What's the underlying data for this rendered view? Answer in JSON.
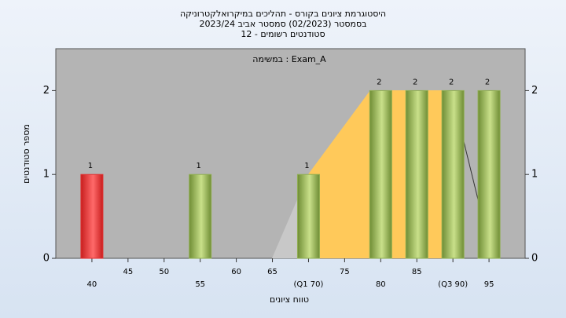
{
  "chart_data": {
    "type": "bar",
    "title": [
      "היסטוגרמת ציונים בקורס - תהליכים במיקרואלקטרוניקה",
      "בסמסטר  (02/2023)  סמסטר אביב 2023/24",
      "סטודנטים רשומים - 12"
    ],
    "subtitle": "במשימה : Exam_A",
    "x_label": "טווח ציונים",
    "y_label": "מספר סטודנטים",
    "x": [
      40,
      55,
      70,
      80,
      85,
      90,
      95
    ],
    "values": [
      1,
      1,
      1,
      2,
      2,
      2,
      2
    ],
    "colors": [
      "#e03030",
      "#8fae50",
      "#8fae50",
      "#8fae50",
      "#8fae50",
      "#8fae50",
      "#8fae50"
    ],
    "xlim": [
      35,
      100
    ],
    "xticks": [
      40,
      45,
      50,
      55,
      60,
      65,
      {
        "value": 70,
        "label": "(Q1 70)"
      },
      75,
      80,
      85,
      {
        "value": 90,
        "label": "(Q3 90)"
      },
      95
    ],
    "ylim": [
      0,
      2.5
    ],
    "yticks": [
      0,
      1,
      2
    ]
  }
}
